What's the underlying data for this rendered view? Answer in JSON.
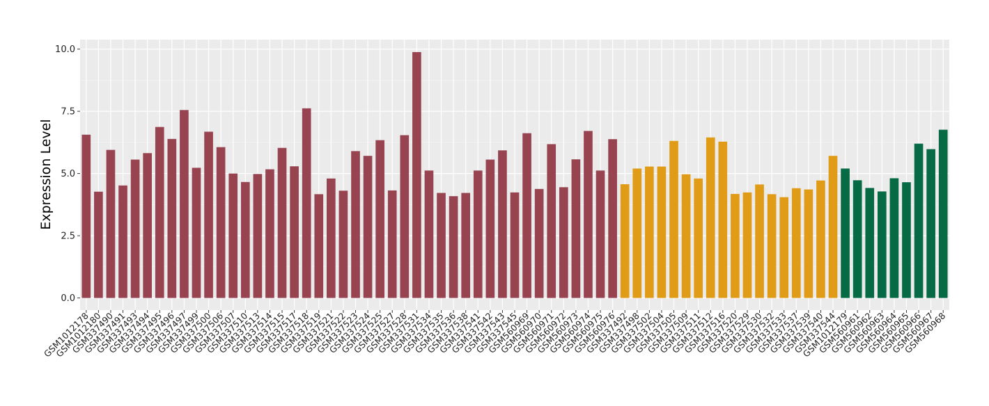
{
  "chart_data": {
    "type": "bar",
    "title": "",
    "xlabel": "",
    "ylabel": "Expression Level",
    "ylim": [
      0,
      10.4
    ],
    "yticks": [
      "0.0",
      "2.5",
      "5.0",
      "7.5",
      "10.0"
    ],
    "grid": true,
    "legend": "none",
    "group_colors": [
      "#974350",
      "#e09b17",
      "#066a44"
    ],
    "categories": [
      "GSM1012178",
      "GSM1012180",
      "GSM337490",
      "GSM337491",
      "GSM337493",
      "GSM337494",
      "GSM337495",
      "GSM337496",
      "GSM337497",
      "GSM337499",
      "GSM337500",
      "GSM337506",
      "GSM337507",
      "GSM337510",
      "GSM337513",
      "GSM337514",
      "GSM337515",
      "GSM337517",
      "GSM337518",
      "GSM337519",
      "GSM337521",
      "GSM337522",
      "GSM337523",
      "GSM337524",
      "GSM337525",
      "GSM337527",
      "GSM337528",
      "GSM337531",
      "GSM337534",
      "GSM337535",
      "GSM337536",
      "GSM337538",
      "GSM337541",
      "GSM337542",
      "GSM337543",
      "GSM337545",
      "GSM560969",
      "GSM560970",
      "GSM560971",
      "GSM560972",
      "GSM560973",
      "GSM560974",
      "GSM560975",
      "GSM560976",
      "GSM337492",
      "GSM337498",
      "GSM337502",
      "GSM337504",
      "GSM337505",
      "GSM337509",
      "GSM337511",
      "GSM337512",
      "GSM337516",
      "GSM337520",
      "GSM337529",
      "GSM337530",
      "GSM337532",
      "GSM337533",
      "GSM337537",
      "GSM337539",
      "GSM337540",
      "GSM337544",
      "GSM1012179",
      "GSM560961",
      "GSM560962",
      "GSM560963",
      "GSM560964",
      "GSM560965",
      "GSM560966",
      "GSM560967",
      "GSM560968"
    ],
    "values": [
      6.56,
      4.27,
      5.95,
      4.52,
      5.56,
      5.82,
      6.87,
      6.39,
      7.55,
      5.23,
      6.68,
      6.06,
      5.0,
      4.66,
      4.98,
      5.17,
      6.03,
      5.29,
      7.62,
      4.17,
      4.8,
      4.31,
      5.9,
      5.71,
      6.34,
      4.32,
      6.54,
      9.88,
      5.12,
      4.22,
      4.09,
      4.22,
      5.12,
      5.56,
      5.93,
      4.24,
      6.62,
      4.38,
      6.18,
      4.45,
      5.57,
      6.71,
      5.12,
      6.38,
      4.57,
      5.2,
      5.28,
      5.28,
      6.31,
      4.97,
      4.8,
      6.45,
      6.28,
      4.18,
      4.24,
      4.56,
      4.17,
      4.05,
      4.41,
      4.36,
      4.72,
      5.71,
      5.2,
      4.73,
      4.42,
      4.28,
      4.81,
      4.65,
      6.2,
      5.98,
      6.76
    ],
    "groups": [
      0,
      0,
      0,
      0,
      0,
      0,
      0,
      0,
      0,
      0,
      0,
      0,
      0,
      0,
      0,
      0,
      0,
      0,
      0,
      0,
      0,
      0,
      0,
      0,
      0,
      0,
      0,
      0,
      0,
      0,
      0,
      0,
      0,
      0,
      0,
      0,
      0,
      0,
      0,
      0,
      0,
      0,
      0,
      0,
      1,
      1,
      1,
      1,
      1,
      1,
      1,
      1,
      1,
      1,
      1,
      1,
      1,
      1,
      1,
      1,
      1,
      1,
      2,
      2,
      2,
      2,
      2,
      2,
      2,
      2,
      2
    ]
  }
}
